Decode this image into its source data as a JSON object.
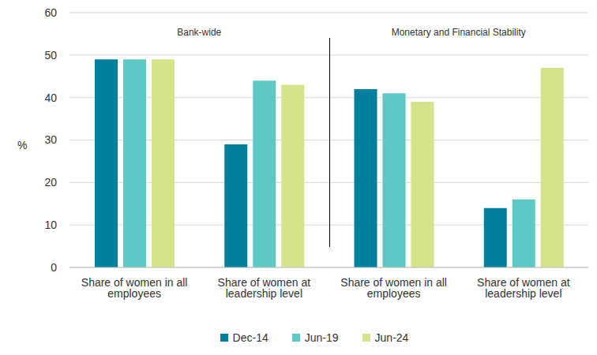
{
  "chart_data": {
    "type": "bar",
    "y_label": "%",
    "categories": [
      "Share of women in all employees",
      "Share of women at leadership level",
      "Share of women in all employees",
      "Share of women at leadership level"
    ],
    "annotations": [
      "Bank-wide",
      "Monetary and Financial Stability"
    ],
    "series": [
      {
        "name": "Dec-14",
        "color": "#00809e",
        "values": [
          49,
          29,
          42,
          14
        ]
      },
      {
        "name": "Jun-19",
        "color": "#5ec8c5",
        "values": [
          49,
          44,
          41,
          16
        ]
      },
      {
        "name": "Jun-24",
        "color": "#d4e48a",
        "values": [
          49,
          43,
          39,
          47
        ]
      }
    ],
    "ylim": [
      0,
      60
    ],
    "yticks": [
      0,
      10,
      20,
      30,
      40,
      50,
      60
    ],
    "grid": true,
    "legend": "bottom"
  }
}
